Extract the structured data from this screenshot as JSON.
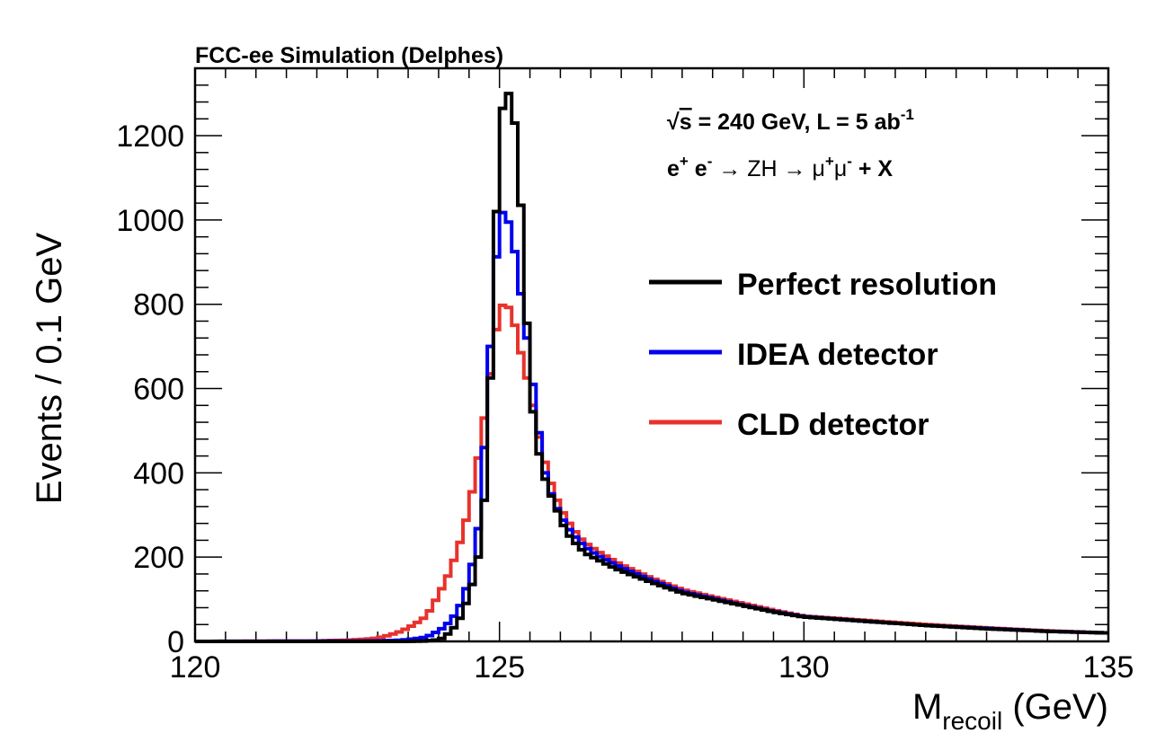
{
  "chart_data": {
    "type": "line",
    "label": "FCC-ee Simulation (Delphes)",
    "annotations": {
      "line1": {
        "sqrt": "√",
        "s_label": "s",
        "text": " = 240 GeV, L = 5 ab",
        "sup": "-1"
      },
      "line2": {
        "eplus": "e",
        "eplus_sup": "+",
        "eminus": " e",
        "eminus_sup": "-",
        "arrow1": " → ZH → ",
        "muplus": "μ",
        "muplus_sup": "+",
        "muminus": "μ",
        "muminus_sup": "-",
        "tail": " + X"
      }
    },
    "xlabel": {
      "main": "M",
      "sub": "recoil",
      "unit": " (GeV)"
    },
    "ylabel": "Events / 0.1 GeV",
    "xlim": [
      120,
      135
    ],
    "ylim": [
      0,
      1360
    ],
    "x_ticks": [
      120,
      125,
      130,
      135
    ],
    "y_ticks": [
      0,
      200,
      400,
      600,
      800,
      1000,
      1200
    ],
    "bin_width": 0.1,
    "legend_position": "right",
    "series": [
      {
        "name": "Perfect resolution",
        "color": "#000000",
        "points": [
          [
            120,
            0
          ],
          [
            123.5,
            0
          ],
          [
            123.8,
            1
          ],
          [
            124.0,
            4
          ],
          [
            124.1,
            10
          ],
          [
            124.2,
            25
          ],
          [
            124.3,
            40
          ],
          [
            124.4,
            70
          ],
          [
            124.5,
            110
          ],
          [
            124.6,
            160
          ],
          [
            124.7,
            240
          ],
          [
            124.8,
            430
          ],
          [
            124.9,
            820
          ],
          [
            125.0,
            1220
          ],
          [
            125.1,
            1310
          ],
          [
            125.2,
            1290
          ],
          [
            125.3,
            1170
          ],
          [
            125.4,
            900
          ],
          [
            125.5,
            610
          ],
          [
            125.6,
            480
          ],
          [
            125.7,
            410
          ],
          [
            125.8,
            360
          ],
          [
            125.9,
            330
          ],
          [
            126.0,
            290
          ],
          [
            126.1,
            260
          ],
          [
            126.2,
            240
          ],
          [
            126.3,
            225
          ],
          [
            126.4,
            210
          ],
          [
            126.6,
            195
          ],
          [
            126.8,
            180
          ],
          [
            127.0,
            167
          ],
          [
            127.5,
            140
          ],
          [
            128.0,
            115
          ],
          [
            128.5,
            100
          ],
          [
            129.0,
            85
          ],
          [
            129.5,
            70
          ],
          [
            130.0,
            58
          ],
          [
            131.0,
            48
          ],
          [
            132.0,
            38
          ],
          [
            133.0,
            30
          ],
          [
            134.0,
            24
          ],
          [
            135.0,
            20
          ]
        ]
      },
      {
        "name": "IDEA detector",
        "color": "#0000ee",
        "points": [
          [
            120,
            0
          ],
          [
            123.0,
            1
          ],
          [
            123.4,
            3
          ],
          [
            123.6,
            6
          ],
          [
            123.8,
            10
          ],
          [
            124.0,
            25
          ],
          [
            124.1,
            35
          ],
          [
            124.2,
            50
          ],
          [
            124.3,
            70
          ],
          [
            124.4,
            100
          ],
          [
            124.5,
            150
          ],
          [
            124.6,
            215
          ],
          [
            124.7,
            320
          ],
          [
            124.8,
            600
          ],
          [
            124.9,
            800
          ],
          [
            125.0,
            1025
          ],
          [
            125.1,
            1010
          ],
          [
            125.2,
            980
          ],
          [
            125.3,
            870
          ],
          [
            125.4,
            780
          ],
          [
            125.5,
            660
          ],
          [
            125.6,
            560
          ],
          [
            125.7,
            430
          ],
          [
            125.8,
            370
          ],
          [
            125.9,
            330
          ],
          [
            126.0,
            300
          ],
          [
            126.1,
            275
          ],
          [
            126.2,
            255
          ],
          [
            126.3,
            240
          ],
          [
            126.4,
            225
          ],
          [
            126.6,
            205
          ],
          [
            126.8,
            190
          ],
          [
            127.0,
            175
          ],
          [
            127.5,
            145
          ],
          [
            128.0,
            118
          ],
          [
            128.5,
            102
          ],
          [
            129.0,
            86
          ],
          [
            129.5,
            71
          ],
          [
            130.0,
            59
          ],
          [
            131.0,
            48
          ],
          [
            132.0,
            38
          ],
          [
            133.0,
            31
          ],
          [
            134.0,
            24
          ],
          [
            135.0,
            20
          ]
        ]
      },
      {
        "name": "CLD detector",
        "color": "#e8322c",
        "points": [
          [
            120,
            0
          ],
          [
            122.0,
            1
          ],
          [
            122.5,
            3
          ],
          [
            122.8,
            5
          ],
          [
            123.0,
            8
          ],
          [
            123.2,
            15
          ],
          [
            123.4,
            25
          ],
          [
            123.6,
            40
          ],
          [
            123.8,
            60
          ],
          [
            124.0,
            110
          ],
          [
            124.1,
            140
          ],
          [
            124.2,
            170
          ],
          [
            124.3,
            215
          ],
          [
            124.4,
            255
          ],
          [
            124.5,
            320
          ],
          [
            124.6,
            390
          ],
          [
            124.7,
            480
          ],
          [
            124.8,
            580
          ],
          [
            124.9,
            690
          ],
          [
            125.0,
            790
          ],
          [
            125.1,
            805
          ],
          [
            125.2,
            780
          ],
          [
            125.3,
            720
          ],
          [
            125.4,
            650
          ],
          [
            125.5,
            600
          ],
          [
            125.6,
            520
          ],
          [
            125.7,
            450
          ],
          [
            125.8,
            400
          ],
          [
            125.9,
            350
          ],
          [
            126.0,
            320
          ],
          [
            126.1,
            290
          ],
          [
            126.2,
            270
          ],
          [
            126.3,
            250
          ],
          [
            126.4,
            235
          ],
          [
            126.6,
            215
          ],
          [
            126.8,
            198
          ],
          [
            127.0,
            182
          ],
          [
            127.5,
            150
          ],
          [
            128.0,
            123
          ],
          [
            128.5,
            106
          ],
          [
            129.0,
            90
          ],
          [
            129.5,
            74
          ],
          [
            130.0,
            60
          ],
          [
            131.0,
            50
          ],
          [
            132.0,
            40
          ],
          [
            133.0,
            32
          ],
          [
            134.0,
            25
          ],
          [
            135.0,
            20
          ]
        ]
      }
    ]
  }
}
